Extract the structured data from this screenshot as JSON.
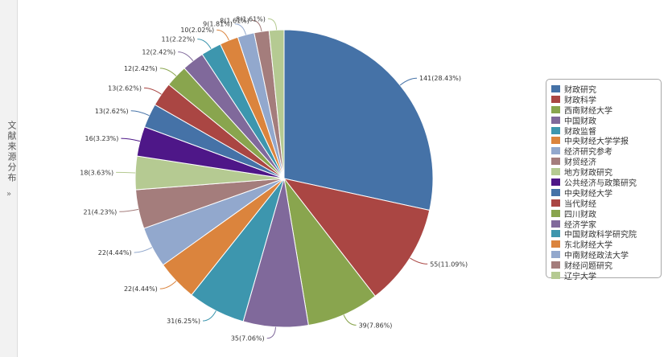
{
  "side_tab": {
    "label": "文献来源分布",
    "chevron": "»"
  },
  "chart_data": {
    "type": "pie",
    "start_angle_deg": 0,
    "direction": "clockwise",
    "label_format": "value(percent)",
    "legend_position": "right",
    "slices": [
      {
        "name": "财政研究",
        "value": 141,
        "percent": "28.43%",
        "color": "#4572A7"
      },
      {
        "name": "财政科学",
        "value": 55,
        "percent": "11.09%",
        "color": "#AA4643"
      },
      {
        "name": "西南财经大学",
        "value": 39,
        "percent": "7.86%",
        "color": "#89A54E"
      },
      {
        "name": "中国财政",
        "value": 35,
        "percent": "7.06%",
        "color": "#80699B"
      },
      {
        "name": "财政监督",
        "value": 31,
        "percent": "6.25%",
        "color": "#3D96AE"
      },
      {
        "name": "中央财经大学学报",
        "value": 22,
        "percent": "4.44%",
        "color": "#DB843D"
      },
      {
        "name": "经济研究参考",
        "value": 22,
        "percent": "4.44%",
        "color": "#92A8CD"
      },
      {
        "name": "财贸经济",
        "value": 21,
        "percent": "4.23%",
        "color": "#A47D7C"
      },
      {
        "name": "地方财政研究",
        "value": 18,
        "percent": "3.63%",
        "color": "#B5CA92"
      },
      {
        "name": "公共经济与政策研究",
        "value": 16,
        "percent": "3.23%",
        "color": "#4E1788"
      },
      {
        "name": "中央财经大学",
        "value": 13,
        "percent": "2.62%",
        "color": "#4572A7"
      },
      {
        "name": "当代财经",
        "value": 13,
        "percent": "2.62%",
        "color": "#AA4643"
      },
      {
        "name": "四川财政",
        "value": 12,
        "percent": "2.42%",
        "color": "#89A54E"
      },
      {
        "name": "经济学家",
        "value": 12,
        "percent": "2.42%",
        "color": "#80699B"
      },
      {
        "name": "中国财政科学研究院",
        "value": 11,
        "percent": "2.22%",
        "color": "#3D96AE"
      },
      {
        "name": "东北财经大学",
        "value": 10,
        "percent": "2.02%",
        "color": "#DB843D"
      },
      {
        "name": "中南财经政法大学",
        "value": 9,
        "percent": "1.81%",
        "color": "#92A8CD"
      },
      {
        "name": "财经问题研究",
        "value": 8,
        "percent": "1.61%",
        "color": "#A47D7C"
      },
      {
        "name": "辽宁大学",
        "value": 8,
        "percent": "1.61%",
        "color": "#B5CA92"
      }
    ]
  }
}
